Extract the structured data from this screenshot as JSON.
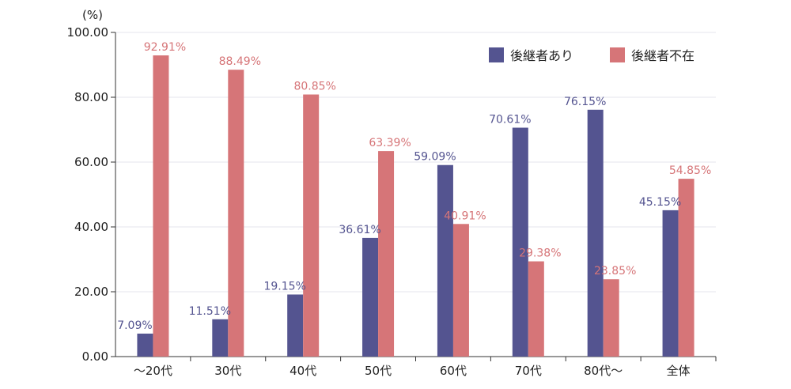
{
  "chart_data": {
    "type": "bar",
    "title": "",
    "xlabel": "",
    "ylabel": "(%)",
    "ylim": [
      0,
      100
    ],
    "y_ticks": [
      "0.00",
      "20.00",
      "40.00",
      "60.00",
      "80.00",
      "100.00"
    ],
    "grid": true,
    "legend_position": "top-right",
    "categories": [
      "～20代",
      "30代",
      "40代",
      "50代",
      "60代",
      "70代",
      "80代～",
      "全体"
    ],
    "series": [
      {
        "name": "後継者あり",
        "color": "#545490",
        "values": [
          7.09,
          11.51,
          19.15,
          36.61,
          59.09,
          70.61,
          76.15,
          45.15
        ],
        "labels": [
          "7.09%",
          "11.51%",
          "19.15%",
          "36.61%",
          "59.09%",
          "70.61%",
          "76.15%",
          "45.15%"
        ]
      },
      {
        "name": "後継者不在",
        "color": "#d67578",
        "values": [
          92.91,
          88.49,
          80.85,
          63.39,
          40.91,
          29.38,
          23.85,
          54.85
        ],
        "labels": [
          "92.91%",
          "88.49%",
          "80.85%",
          "63.39%",
          "40.91%",
          "29.38%",
          "23.85%",
          "54.85%"
        ]
      }
    ]
  }
}
